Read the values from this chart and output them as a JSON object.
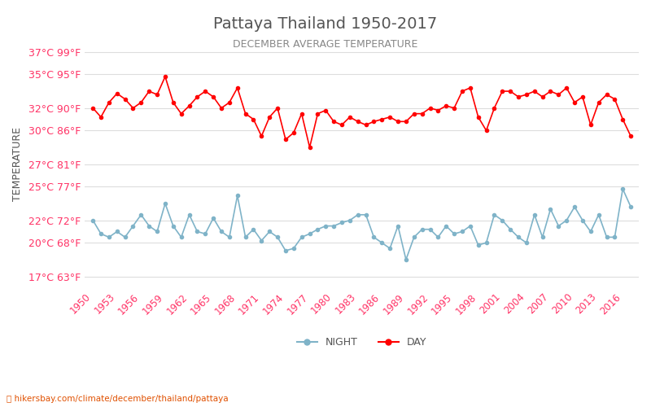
{
  "title": "Pattaya Thailand 1950-2017",
  "subtitle": "DECEMBER AVERAGE TEMPERATURE",
  "xlabel_label": "TEMPERATURE",
  "yticks_c": [
    17,
    20,
    22,
    25,
    27,
    30,
    32,
    35,
    37
  ],
  "yticks_f": [
    63,
    68,
    72,
    77,
    81,
    86,
    90,
    95,
    99
  ],
  "years": [
    1950,
    1951,
    1952,
    1953,
    1954,
    1955,
    1956,
    1957,
    1958,
    1959,
    1960,
    1961,
    1962,
    1963,
    1964,
    1965,
    1966,
    1967,
    1968,
    1969,
    1970,
    1971,
    1972,
    1973,
    1974,
    1975,
    1976,
    1977,
    1978,
    1979,
    1980,
    1981,
    1982,
    1983,
    1984,
    1985,
    1986,
    1987,
    1988,
    1989,
    1990,
    1991,
    1992,
    1993,
    1994,
    1995,
    1996,
    1997,
    1998,
    1999,
    2000,
    2001,
    2002,
    2003,
    2004,
    2005,
    2006,
    2007,
    2008,
    2009,
    2010,
    2011,
    2012,
    2013,
    2014,
    2015,
    2016,
    2017
  ],
  "day_temps": [
    32.0,
    31.2,
    32.5,
    33.3,
    32.8,
    32.0,
    32.5,
    33.5,
    33.2,
    34.8,
    32.5,
    31.5,
    32.2,
    33.0,
    33.5,
    33.0,
    32.0,
    32.5,
    33.8,
    31.5,
    31.0,
    29.5,
    31.2,
    32.0,
    29.2,
    29.8,
    31.5,
    28.5,
    31.5,
    31.8,
    30.8,
    30.5,
    31.2,
    30.8,
    30.5,
    30.8,
    31.0,
    31.2,
    30.8,
    30.8,
    31.5,
    31.5,
    32.0,
    31.8,
    32.2,
    32.0,
    33.5,
    33.8,
    31.2,
    30.0,
    32.0,
    33.5,
    33.5,
    33.0,
    33.2,
    33.5,
    33.0,
    33.5,
    33.2,
    33.8,
    32.5,
    33.0,
    30.5,
    32.5,
    33.2,
    32.8,
    31.0,
    29.5
  ],
  "night_temps": [
    22.0,
    20.8,
    20.5,
    21.0,
    20.5,
    21.5,
    22.5,
    21.5,
    21.0,
    23.5,
    21.5,
    20.5,
    22.5,
    21.0,
    20.8,
    22.2,
    21.0,
    20.5,
    24.2,
    20.5,
    21.2,
    20.2,
    21.0,
    20.5,
    19.3,
    19.5,
    20.5,
    20.8,
    21.2,
    21.5,
    21.5,
    21.8,
    22.0,
    22.5,
    22.5,
    20.5,
    20.0,
    19.5,
    21.5,
    18.5,
    20.5,
    21.2,
    21.2,
    20.5,
    21.5,
    20.8,
    21.0,
    21.5,
    19.8,
    20.0,
    22.5,
    22.0,
    21.2,
    20.5,
    20.0,
    22.5,
    20.5,
    23.0,
    21.5,
    22.0,
    23.2,
    22.0,
    21.0,
    22.5,
    20.5,
    20.5,
    24.8,
    23.2
  ],
  "day_color": "#ff0000",
  "night_color": "#7fb3c8",
  "background_color": "#ffffff",
  "grid_color": "#dddddd",
  "title_color": "#555555",
  "subtitle_color": "#888888",
  "ylabel_color": "#555555",
  "tick_label_color": "#ff3366",
  "watermark": "hikersbay.com/climate/december/thailand/pattaya",
  "legend_night": "NIGHT",
  "legend_day": "DAY",
  "xtick_years": [
    1950,
    1953,
    1956,
    1959,
    1962,
    1965,
    1968,
    1971,
    1974,
    1977,
    1980,
    1983,
    1986,
    1989,
    1992,
    1995,
    1998,
    2001,
    2004,
    2007,
    2010,
    2013,
    2016
  ],
  "ylim": [
    16,
    38
  ],
  "figsize": [
    8.0,
    5.0
  ],
  "dpi": 100
}
